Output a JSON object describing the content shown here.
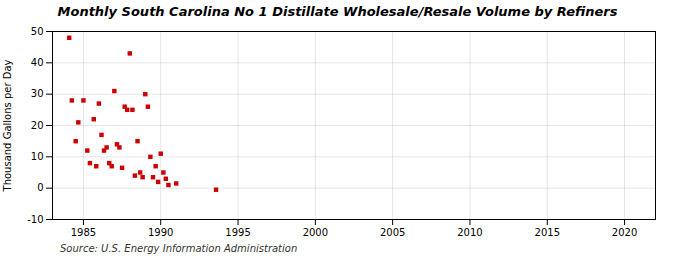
{
  "chart_data": {
    "type": "scatter",
    "title": "Monthly South Carolina No 1 Distillate Wholesale/Resale Volume by Refiners",
    "ylabel": "Thousand Gallons per Day",
    "source": "Source: U.S. Energy Information Administration",
    "x": [
      1984.08,
      1984.25,
      1984.5,
      1984.67,
      1985.0,
      1985.25,
      1985.42,
      1985.67,
      1985.83,
      1986.0,
      1986.17,
      1986.33,
      1986.5,
      1986.67,
      1986.83,
      1987.0,
      1987.17,
      1987.33,
      1987.5,
      1987.67,
      1987.83,
      1988.0,
      1988.17,
      1988.33,
      1988.5,
      1988.67,
      1988.83,
      1989.0,
      1989.17,
      1989.33,
      1989.5,
      1989.67,
      1989.83,
      1990.0,
      1990.17,
      1990.33,
      1990.5,
      1991.0,
      1993.58
    ],
    "values": [
      48.0,
      28.0,
      15.0,
      21.0,
      28.0,
      12.0,
      8.0,
      22.0,
      7.0,
      27.0,
      17.0,
      12.0,
      13.0,
      8.0,
      7.0,
      31.0,
      14.0,
      13.0,
      6.5,
      26.0,
      25.0,
      43.0,
      25.0,
      4.0,
      15.0,
      5.0,
      3.5,
      30.0,
      26.0,
      10.0,
      3.5,
      7.0,
      2.0,
      11.0,
      5.0,
      3.0,
      1.0,
      1.5,
      -0.5
    ],
    "color": "#cc0000",
    "marker": "square",
    "xlim": [
      1983,
      2022
    ],
    "ylim": [
      -10,
      50
    ],
    "xticks": [
      1985,
      1990,
      1995,
      2000,
      2005,
      2010,
      2015,
      2020
    ],
    "yticks": [
      -10,
      0,
      10,
      20,
      30,
      40,
      50
    ],
    "grid": true
  }
}
